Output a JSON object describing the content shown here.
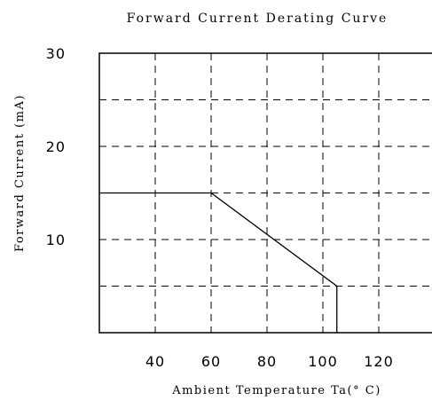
{
  "chart_data": {
    "type": "line",
    "title": "Forward Current Derating Curve",
    "xlabel": "Ambient Temperature Ta(° C)",
    "ylabel": "Forward Current (mA)",
    "xlim": [
      20,
      140
    ],
    "ylim": [
      0,
      30
    ],
    "x_ticks": [
      40,
      60,
      80,
      100,
      120
    ],
    "x_tick_labels": [
      "40",
      "60",
      "80",
      "100",
      "120"
    ],
    "y_ticks": [
      10,
      20,
      30
    ],
    "y_tick_labels": [
      "10",
      "20",
      "30"
    ],
    "grid": true,
    "series": [
      {
        "x": [
          20,
          60,
          105,
          105
        ],
        "y": [
          15,
          15,
          5,
          0
        ]
      }
    ]
  }
}
